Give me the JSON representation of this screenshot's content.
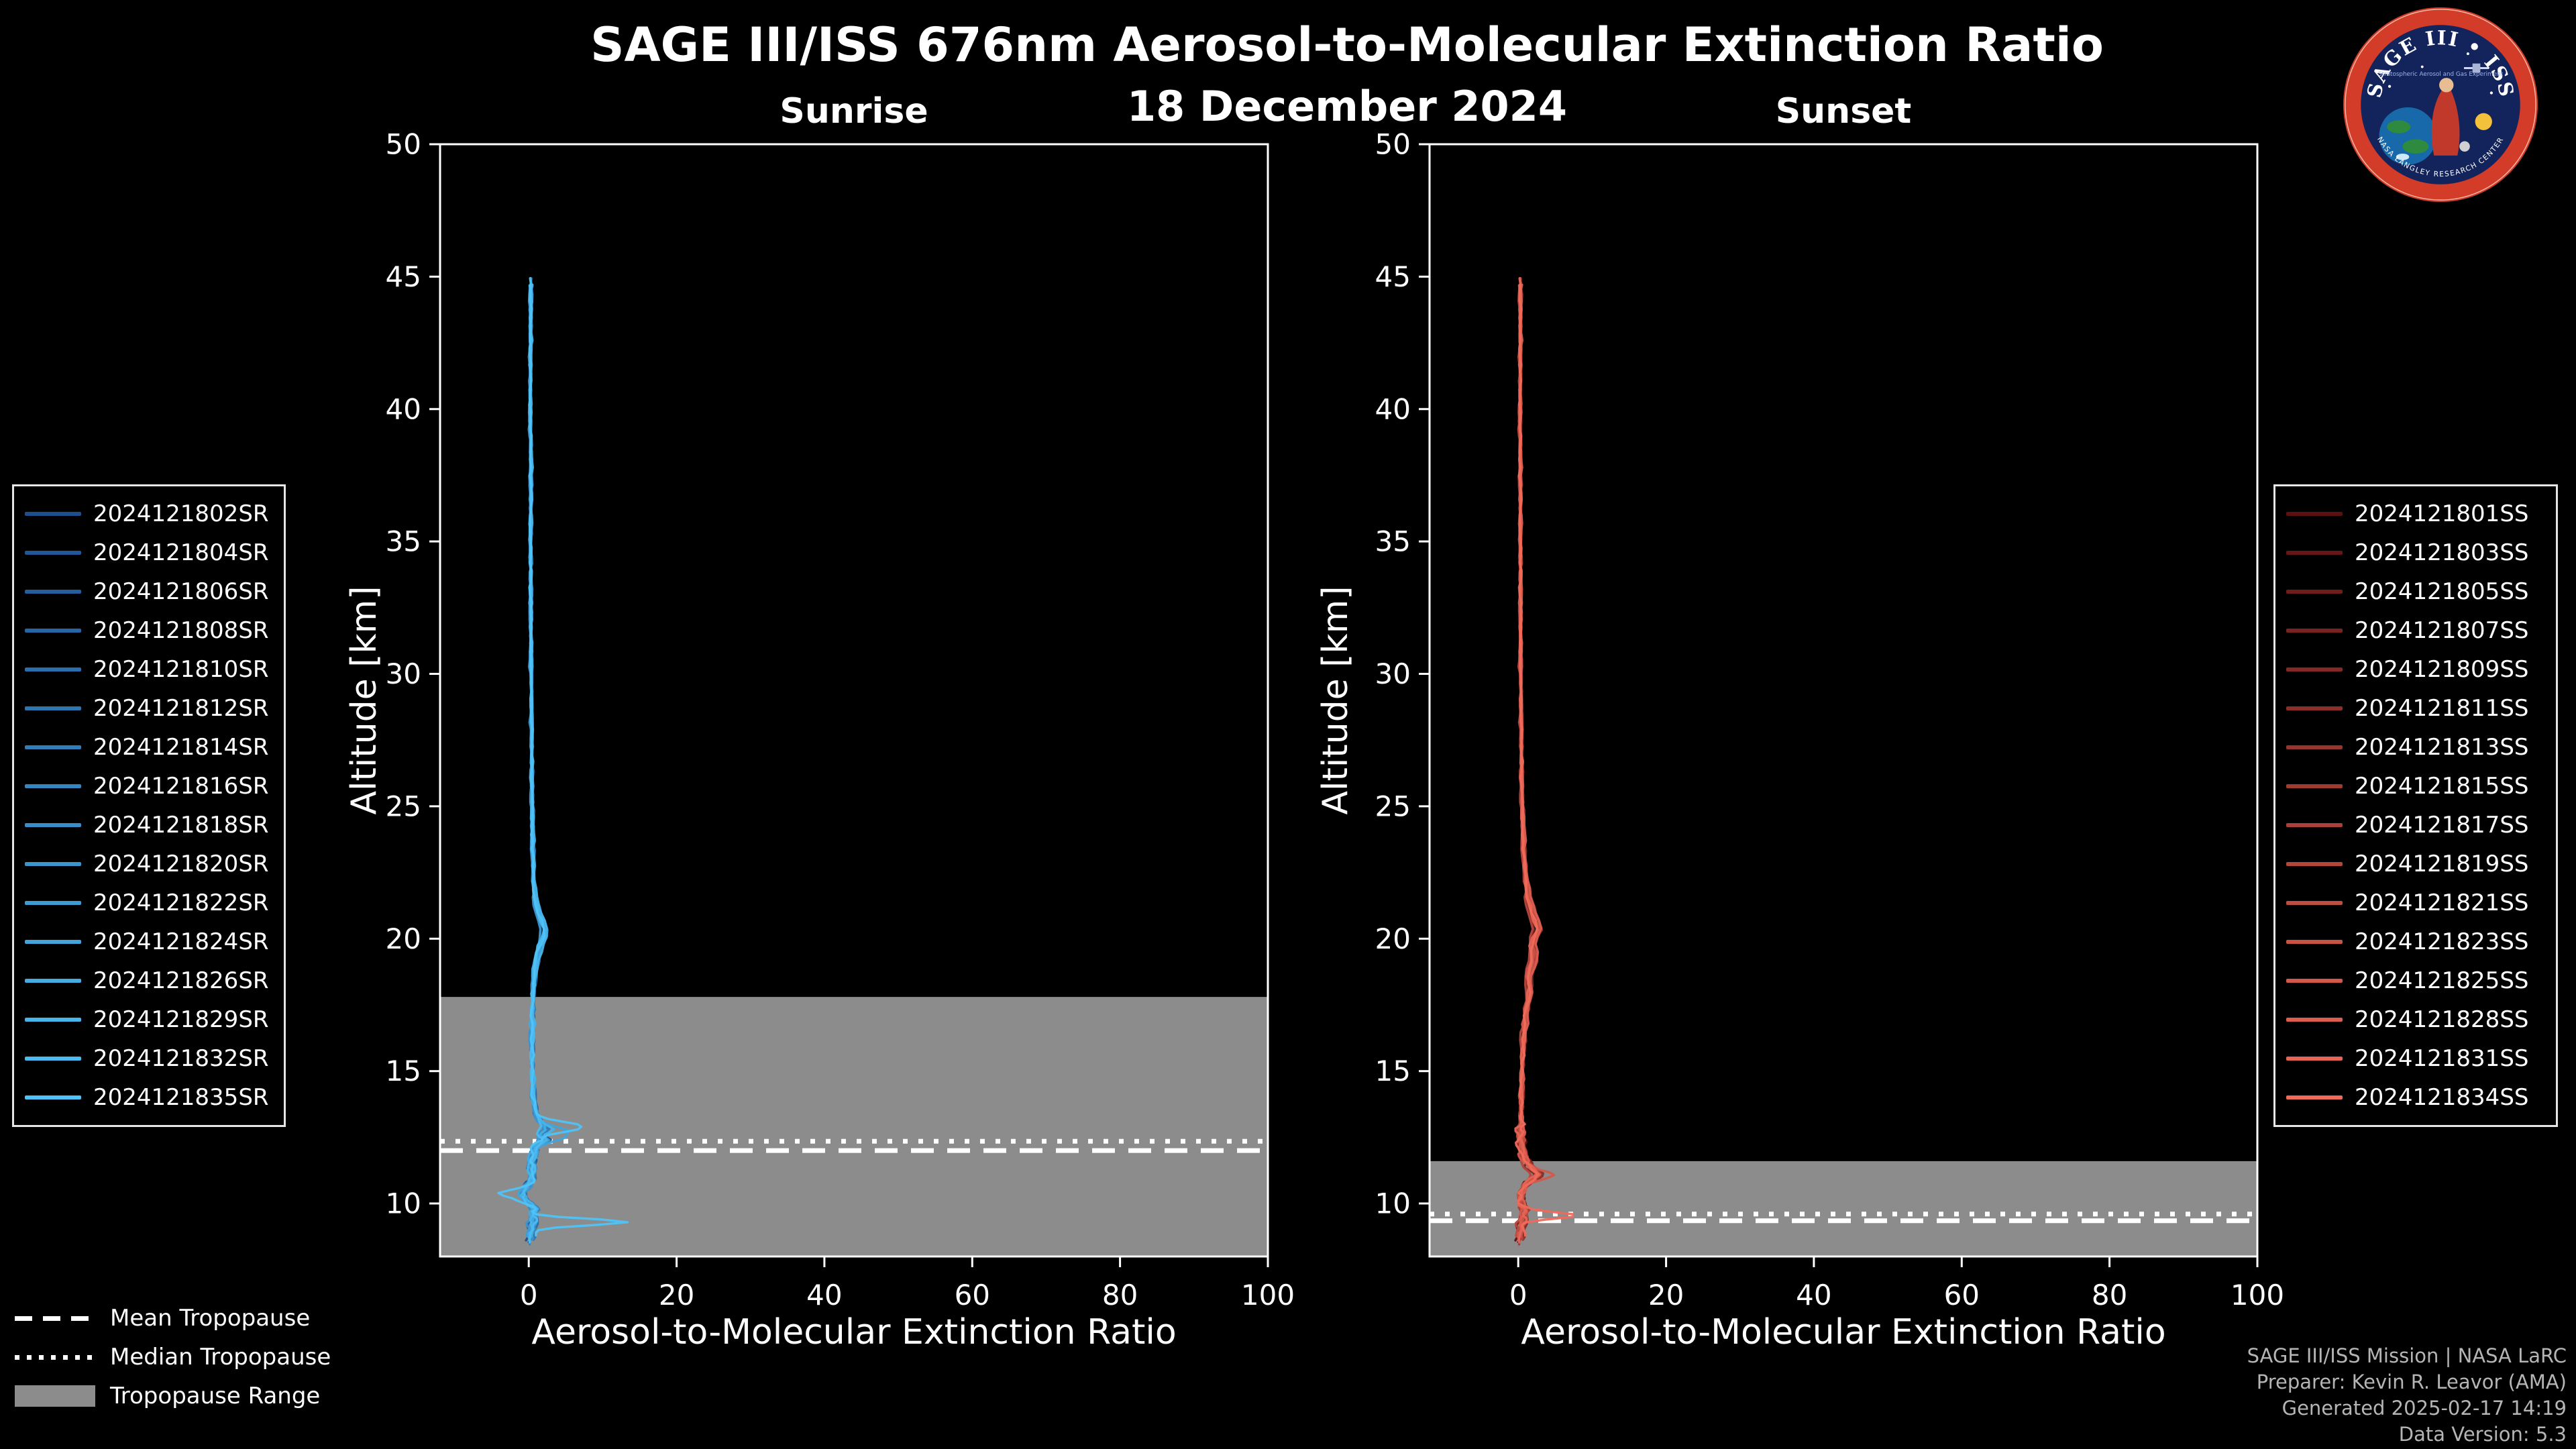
{
  "header": {
    "title": "SAGE III/ISS 676nm Aerosol-to-Molecular Extinction Ratio",
    "date": "18 December 2024"
  },
  "logo": {
    "arc_text": "SAGE III • ISS",
    "bottom_arc_text": "NASA LANGLEY RESEARCH CENTER",
    "subtitle": "Stratospheric Aerosol and Gas Experiment",
    "ring_color": "#d23c28",
    "field_color": "#13235b"
  },
  "footer": {
    "credits": [
      "SAGE III/ISS Mission | NASA LaRC",
      "Preparer: Kevin R. Leavor (AMA)",
      "Generated 2025-02-17 14:19",
      "Data Version: 5.3"
    ]
  },
  "tropopause_legend": {
    "mean_label": "Mean Tropopause",
    "median_label": "Median Tropopause",
    "range_label": "Tropopause Range",
    "range_color": "#8c8c8c"
  },
  "chart_data": [
    {
      "type": "line",
      "title": "Sunrise",
      "xlabel": "Aerosol-to-Molecular Extinction Ratio",
      "ylabel": "Altitude [km]",
      "xlim": [
        -12,
        100
      ],
      "ylim": [
        8,
        50
      ],
      "xticks": [
        0,
        20,
        40,
        60,
        80,
        100
      ],
      "yticks": [
        10,
        15,
        20,
        25,
        30,
        35,
        40,
        45,
        50
      ],
      "color_start": "#1d4f8f",
      "color_end": "#4fc3f7",
      "tropopause": {
        "mean_km": 12.0,
        "median_km": 12.35,
        "range_top_km": 17.8,
        "range_bottom_km": 8.0
      },
      "events": [
        "2024121802SR",
        "2024121804SR",
        "2024121806SR",
        "2024121808SR",
        "2024121810SR",
        "2024121812SR",
        "2024121814SR",
        "2024121816SR",
        "2024121818SR",
        "2024121820SR",
        "2024121822SR",
        "2024121824SR",
        "2024121826SR",
        "2024121829SR",
        "2024121832SR",
        "2024121835SR"
      ],
      "base_profile": [
        [
          8.5,
          0.2
        ],
        [
          8.9,
          0.3
        ],
        [
          9.2,
          0.5
        ],
        [
          9.5,
          0.6
        ],
        [
          9.8,
          0.8
        ],
        [
          10.1,
          -0.3
        ],
        [
          10.4,
          -0.9
        ],
        [
          10.8,
          0.2
        ],
        [
          11.2,
          0.5
        ],
        [
          11.6,
          0.4
        ],
        [
          12.1,
          0.8
        ],
        [
          12.4,
          2.2
        ],
        [
          12.6,
          1.4
        ],
        [
          12.8,
          2.6
        ],
        [
          13.0,
          1.8
        ],
        [
          13.4,
          1.0
        ],
        [
          14,
          0.6
        ],
        [
          15,
          0.5
        ],
        [
          16,
          0.45
        ],
        [
          17,
          0.5
        ],
        [
          18,
          0.6
        ],
        [
          19,
          0.9
        ],
        [
          19.8,
          1.6
        ],
        [
          20.2,
          2.3
        ],
        [
          20.6,
          1.9
        ],
        [
          21.2,
          1.1
        ],
        [
          22,
          0.7
        ],
        [
          24,
          0.5
        ],
        [
          26,
          0.45
        ],
        [
          28,
          0.4
        ],
        [
          30,
          0.35
        ],
        [
          32,
          0.3
        ],
        [
          35,
          0.25
        ],
        [
          38,
          0.3
        ],
        [
          40,
          0.2
        ],
        [
          42,
          0.25
        ],
        [
          45,
          0.3
        ]
      ],
      "outliers": [
        {
          "series_index": 15,
          "bumps": [
            [
              9.3,
              0.12,
              13.0
            ],
            [
              12.9,
              0.18,
              5.0
            ],
            [
              10.35,
              0.15,
              -3.0
            ]
          ]
        },
        {
          "series_index": 11,
          "bumps": [
            [
              12.6,
              0.2,
              4.0
            ]
          ]
        }
      ]
    },
    {
      "type": "line",
      "title": "Sunset",
      "xlabel": "Aerosol-to-Molecular Extinction Ratio",
      "ylabel": "Altitude [km]",
      "xlim": [
        -12,
        100
      ],
      "ylim": [
        8,
        50
      ],
      "xticks": [
        0,
        20,
        40,
        60,
        80,
        100
      ],
      "yticks": [
        10,
        15,
        20,
        25,
        30,
        35,
        40,
        45,
        50
      ],
      "color_start": "#5c1010",
      "color_end": "#ef6a5a",
      "tropopause": {
        "mean_km": 9.35,
        "median_km": 9.6,
        "range_top_km": 11.6,
        "range_bottom_km": 8.0
      },
      "events": [
        "2024121801SS",
        "2024121803SS",
        "2024121805SS",
        "2024121807SS",
        "2024121809SS",
        "2024121811SS",
        "2024121813SS",
        "2024121815SS",
        "2024121817SS",
        "2024121819SS",
        "2024121821SS",
        "2024121823SS",
        "2024121825SS",
        "2024121828SS",
        "2024121831SS",
        "2024121834SS"
      ],
      "base_profile": [
        [
          8.5,
          0.2
        ],
        [
          9.0,
          0.3
        ],
        [
          9.4,
          0.6
        ],
        [
          9.7,
          0.9
        ],
        [
          10.0,
          0.4
        ],
        [
          10.4,
          0.5
        ],
        [
          10.8,
          1.2
        ],
        [
          11.1,
          2.8
        ],
        [
          11.4,
          1.6
        ],
        [
          11.8,
          0.6
        ],
        [
          12.5,
          0.35
        ],
        [
          13.5,
          0.4
        ],
        [
          14.5,
          0.45
        ],
        [
          15.5,
          0.6
        ],
        [
          16.5,
          0.8
        ],
        [
          17.2,
          1.1
        ],
        [
          18.0,
          1.6
        ],
        [
          18.6,
          1.4
        ],
        [
          19.3,
          2.2
        ],
        [
          19.9,
          1.8
        ],
        [
          20.3,
          2.8
        ],
        [
          20.8,
          2.2
        ],
        [
          21.5,
          1.4
        ],
        [
          23,
          0.8
        ],
        [
          25,
          0.55
        ],
        [
          27,
          0.45
        ],
        [
          30,
          0.35
        ],
        [
          35,
          0.3
        ],
        [
          40,
          0.25
        ],
        [
          42,
          0.3
        ],
        [
          45,
          0.3
        ]
      ],
      "outliers": [
        {
          "series_index": 15,
          "bumps": [
            [
              9.55,
              0.12,
              7.5
            ]
          ]
        },
        {
          "series_index": 12,
          "bumps": [
            [
              11.05,
              0.15,
              2.5
            ]
          ]
        }
      ]
    }
  ]
}
